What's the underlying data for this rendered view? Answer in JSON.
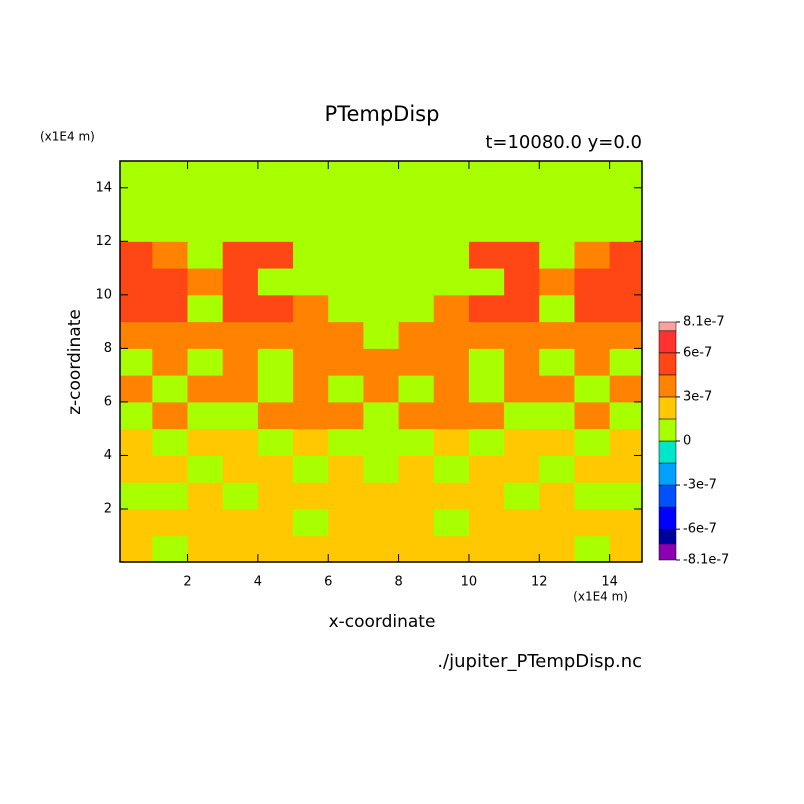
{
  "chart_data": {
    "type": "contourf",
    "title": "PTempDisp",
    "subtitle": "t=10080.0 y=0.0",
    "xlabel": "x-coordinate",
    "ylabel": "z-coordinate",
    "xunit": "(x1E4 m)",
    "yunit": "(x1E4 m)",
    "source": "./jupiter_PTempDisp.nc",
    "xlim": [
      0.08,
      14.92
    ],
    "ylim": [
      0.02,
      15
    ],
    "xticks": [
      2,
      4,
      6,
      8,
      10,
      12,
      14
    ],
    "yticks": [
      2,
      4,
      6,
      8,
      10,
      12,
      14
    ],
    "x": [
      0.5,
      1.5,
      2.5,
      3.5,
      4.5,
      5.5,
      6.5,
      7.5,
      8.5,
      9.5,
      10.5,
      11.5,
      12.5,
      13.5,
      14.5
    ],
    "y": [
      0.5,
      1.5,
      2.5,
      3.5,
      4.5,
      5.5,
      6.5,
      7.5,
      8.5,
      9.5,
      10.5,
      11.5,
      12.5,
      13.5,
      14.5
    ],
    "z": [
      [
        2.2e-07,
        7e-08,
        2.2e-07,
        2.2e-07,
        2.2e-07,
        2.2e-07,
        2.2e-07,
        2.2e-07,
        2.2e-07,
        2.2e-07,
        2.2e-07,
        2.2e-07,
        2.2e-07,
        7e-08,
        2.2e-07
      ],
      [
        2.2e-07,
        2.2e-07,
        2.2e-07,
        2.2e-07,
        2.2e-07,
        7e-08,
        2.2e-07,
        2.2e-07,
        2.2e-07,
        7e-08,
        2.2e-07,
        2.2e-07,
        2.2e-07,
        2.2e-07,
        2.2e-07
      ],
      [
        7e-08,
        7e-08,
        2.2e-07,
        7e-08,
        2.2e-07,
        2.2e-07,
        2.2e-07,
        2.2e-07,
        2.2e-07,
        2.2e-07,
        2.2e-07,
        7e-08,
        2.2e-07,
        7e-08,
        7e-08
      ],
      [
        2.2e-07,
        2.2e-07,
        7e-08,
        2.2e-07,
        2.2e-07,
        7e-08,
        2.2e-07,
        7e-08,
        2.2e-07,
        7e-08,
        2.2e-07,
        2.2e-07,
        7e-08,
        2.2e-07,
        2.2e-07
      ],
      [
        2.2e-07,
        7e-08,
        2.2e-07,
        2.2e-07,
        7e-08,
        2.2e-07,
        7e-08,
        7e-08,
        7e-08,
        2.2e-07,
        7e-08,
        2.2e-07,
        2.2e-07,
        7e-08,
        2.2e-07
      ],
      [
        7e-08,
        3.7e-07,
        7e-08,
        7e-08,
        3.7e-07,
        3.7e-07,
        3.7e-07,
        7e-08,
        3.7e-07,
        3.7e-07,
        3.7e-07,
        7e-08,
        7e-08,
        3.7e-07,
        7e-08
      ],
      [
        3.7e-07,
        7e-08,
        3.7e-07,
        3.7e-07,
        7e-08,
        3.7e-07,
        7e-08,
        3.7e-07,
        7e-08,
        3.7e-07,
        7e-08,
        3.7e-07,
        3.7e-07,
        7e-08,
        3.7e-07
      ],
      [
        7e-08,
        3.7e-07,
        7e-08,
        3.7e-07,
        7e-08,
        3.7e-07,
        3.7e-07,
        3.7e-07,
        3.7e-07,
        3.7e-07,
        7e-08,
        3.7e-07,
        7e-08,
        3.7e-07,
        7e-08
      ],
      [
        3.7e-07,
        3.7e-07,
        3.7e-07,
        3.7e-07,
        3.7e-07,
        3.7e-07,
        3.7e-07,
        7e-08,
        3.7e-07,
        3.7e-07,
        3.7e-07,
        3.7e-07,
        3.7e-07,
        3.7e-07,
        3.7e-07
      ],
      [
        5.2e-07,
        5.2e-07,
        7e-08,
        5.2e-07,
        5.2e-07,
        3.7e-07,
        7e-08,
        7e-08,
        7e-08,
        3.7e-07,
        5.2e-07,
        5.2e-07,
        7e-08,
        5.2e-07,
        5.2e-07
      ],
      [
        5.2e-07,
        5.2e-07,
        3.7e-07,
        5.2e-07,
        7e-08,
        7e-08,
        7e-08,
        7e-08,
        7e-08,
        7e-08,
        7e-08,
        5.2e-07,
        3.7e-07,
        5.2e-07,
        5.2e-07
      ],
      [
        5.2e-07,
        3.7e-07,
        7e-08,
        5.2e-07,
        5.2e-07,
        7e-08,
        7e-08,
        7e-08,
        7e-08,
        7e-08,
        5.2e-07,
        5.2e-07,
        7e-08,
        3.7e-07,
        5.2e-07
      ],
      [
        7e-08,
        7e-08,
        7e-08,
        7e-08,
        7e-08,
        7e-08,
        7e-08,
        7e-08,
        7e-08,
        7e-08,
        7e-08,
        7e-08,
        7e-08,
        7e-08,
        7e-08
      ],
      [
        7e-08,
        7e-08,
        7e-08,
        7e-08,
        7e-08,
        7e-08,
        7e-08,
        7e-08,
        7e-08,
        7e-08,
        7e-08,
        7e-08,
        7e-08,
        7e-08,
        7e-08
      ],
      [
        7e-08,
        7e-08,
        7e-08,
        7e-08,
        7e-08,
        7e-08,
        7e-08,
        7e-08,
        7e-08,
        7e-08,
        7e-08,
        7e-08,
        7e-08,
        7e-08,
        7e-08
      ]
    ],
    "levels": [
      -8.1e-07,
      -7e-07,
      -6e-07,
      -4.5e-07,
      -3e-07,
      -1.5e-07,
      0,
      1.5e-07,
      3e-07,
      4.5e-07,
      6e-07,
      7.5e-07,
      8.1e-07
    ],
    "colors": [
      "#8c00b4",
      "#0000a0",
      "#0000ff",
      "#0050ff",
      "#00a0ff",
      "#00e6c8",
      "#a8ff00",
      "#ffc800",
      "#ff8200",
      "#ff4614",
      "#ff3232",
      "#ffa0a0"
    ],
    "cbar_ticks": [
      8.1e-07,
      6e-07,
      3e-07,
      0,
      -3e-07,
      -6e-07,
      -8.1e-07
    ]
  }
}
